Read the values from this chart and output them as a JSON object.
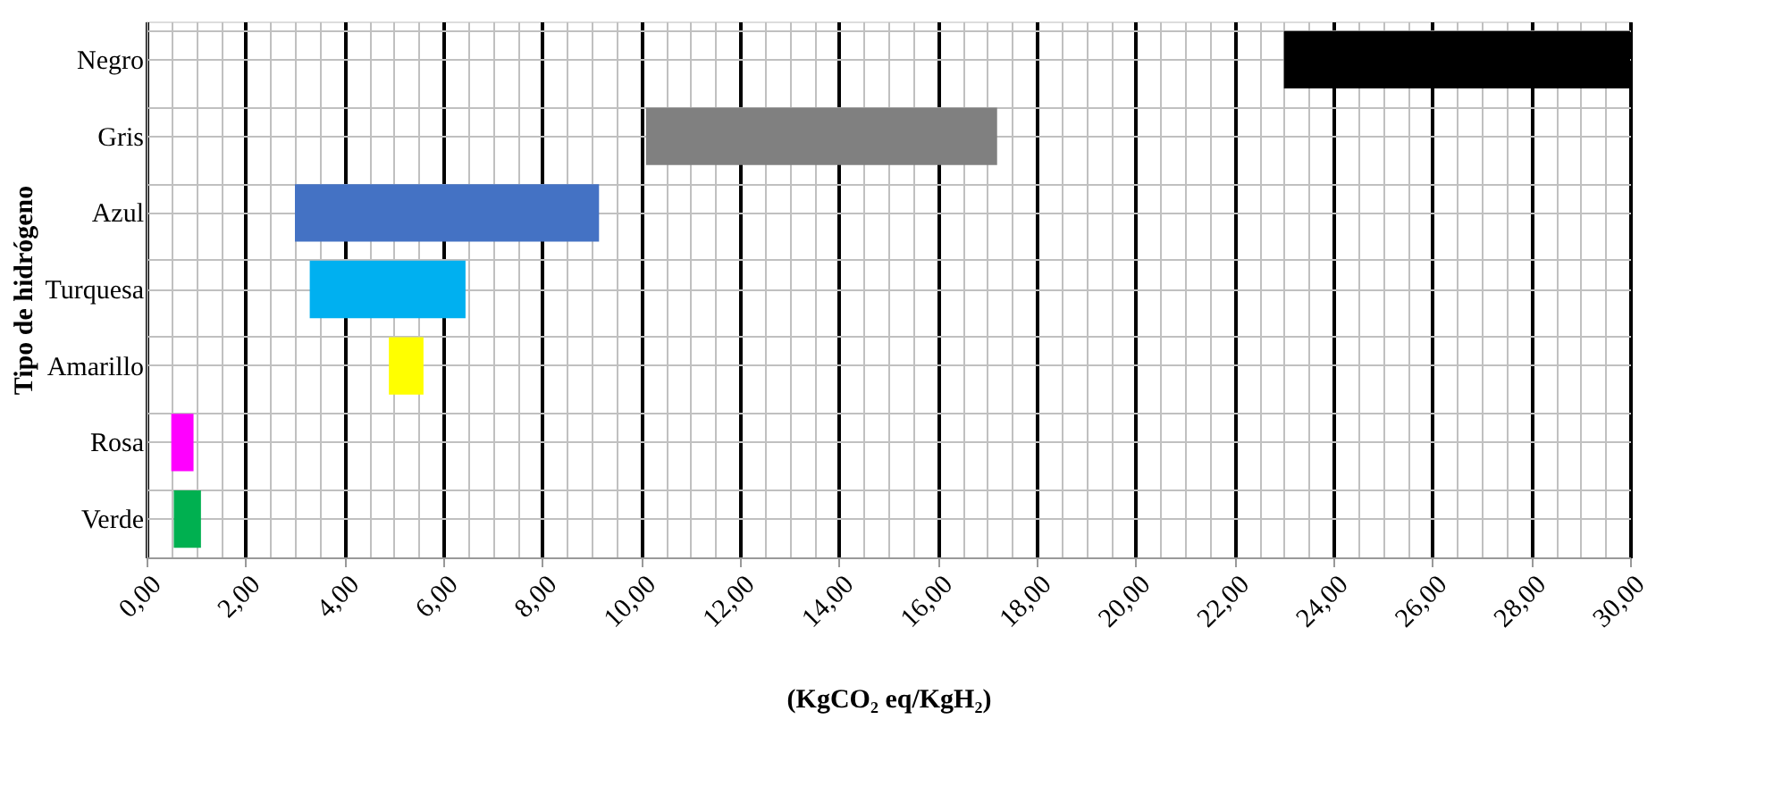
{
  "chart_data": {
    "type": "bar",
    "orientation": "horizontal",
    "xlabel": "(KgCO₂ eq/KgH₂)",
    "ylabel": "Tipo de hidrógeno",
    "categories": [
      "Negro",
      "Gris",
      "Azul",
      "Turquesa",
      "Amarillo",
      "Rosa",
      "Verde"
    ],
    "base": [
      23.0,
      10.1,
      3.0,
      3.3,
      4.9,
      0.5,
      0.55
    ],
    "values": [
      7.0,
      7.1,
      6.15,
      3.15,
      0.7,
      0.45,
      0.55
    ],
    "colors": [
      "#000000",
      "#808080",
      "#4472c4",
      "#00b0f0",
      "#ffff00",
      "#ff00ff",
      "#00b050"
    ],
    "xlim": [
      0,
      30
    ],
    "xticks": [
      {
        "value": 0,
        "label": "0,00"
      },
      {
        "value": 2,
        "label": "2,00"
      },
      {
        "value": 4,
        "label": "4,00"
      },
      {
        "value": 6,
        "label": "6,00"
      },
      {
        "value": 8,
        "label": "8,00"
      },
      {
        "value": 10,
        "label": "10,00"
      },
      {
        "value": 12,
        "label": "12,00"
      },
      {
        "value": 14,
        "label": "14,00"
      },
      {
        "value": 16,
        "label": "16,00"
      },
      {
        "value": 18,
        "label": "18,00"
      },
      {
        "value": 20,
        "label": "20,00"
      },
      {
        "value": 22,
        "label": "22,00"
      },
      {
        "value": 24,
        "label": "24,00"
      },
      {
        "value": 26,
        "label": "26,00"
      },
      {
        "value": 28,
        "label": "28,00"
      },
      {
        "value": 30,
        "label": "30,00"
      }
    ],
    "grid": true
  }
}
